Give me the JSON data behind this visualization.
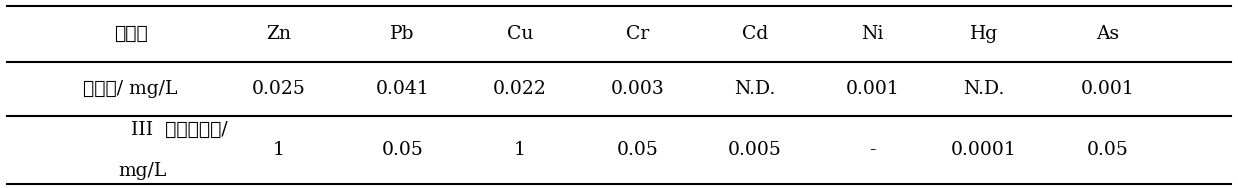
{
  "col_headers": [
    "重金属",
    "Zn",
    "Pb",
    "Cu",
    "Cr",
    "Cd",
    "Ni",
    "Hg",
    "As"
  ],
  "row1_label": "浸出量/ mg/L",
  "row1_values": [
    "0.025",
    "0.041",
    "0.022",
    "0.003",
    "N.D.",
    "0.001",
    "N.D.",
    "0.001"
  ],
  "row2_label_line1": "III  类水体标准/",
  "row2_label_line2": "mg/L",
  "row2_values": [
    "1",
    "0.05",
    "1",
    "0.05",
    "0.005",
    "-",
    "0.0001",
    "0.05"
  ],
  "figsize": [
    12.38,
    1.88
  ],
  "dpi": 100,
  "font_size": 13.5,
  "bg_color": "#ffffff",
  "text_color": "#000000",
  "line_color": "#000000",
  "line_width": 1.5
}
